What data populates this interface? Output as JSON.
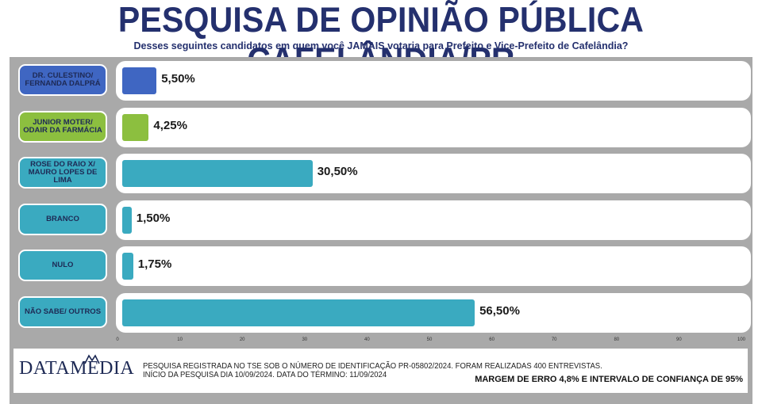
{
  "title": "PESQUISA DE OPINIÃO PÚBLICA CAFELÂNDIA/PR",
  "subtitle": "Desses seguintes candidatos em quem você JAMAIS votaria para Prefeito e Vice-Prefeito de Cafelândia?",
  "chart_data": {
    "type": "bar",
    "orientation": "horizontal",
    "categories": [
      "DR. CULESTINO/ FERNANDA DALPRÁ",
      "JUNIOR MOTER/ ODAIR DA FARMÁCIA",
      "ROSE DO RAIO X/ MAURO LOPES DE LIMA",
      "BRANCO",
      "NULO",
      "NÃO SABE/ OUTROS"
    ],
    "values": [
      5.5,
      4.25,
      30.5,
      1.5,
      1.75,
      56.5
    ],
    "value_labels": [
      "5,50%",
      "4,25%",
      "30,50%",
      "1,50%",
      "1,75%",
      "56,50%"
    ],
    "colors": [
      "#3f66c2",
      "#8cbf3f",
      "#3aaac0",
      "#3aaac0",
      "#3aaac0",
      "#3aaac0"
    ],
    "xlim": [
      0,
      100
    ],
    "xticks": [
      0,
      10,
      20,
      30,
      40,
      50,
      60,
      70,
      80,
      90,
      100
    ],
    "grid": false,
    "legend": "none"
  },
  "footer": {
    "logo_text": "DATAMEDIA",
    "note_line1": "PESQUISA REGISTRADA NO TSE SOB O NÚMERO DE IDENTIFICAÇÃO PR-05802/2024. FORAM REALIZADAS 400 ENTREVISTAS.",
    "note_line2": "INÍCIO DA PESQUISA DIA 10/09/2024. DATA DO TÉRMINO: 11/09/2024",
    "margin_text": "MARGEM DE ERRO 4,8% E INTERVALO DE CONFIANÇA DE 95%"
  }
}
